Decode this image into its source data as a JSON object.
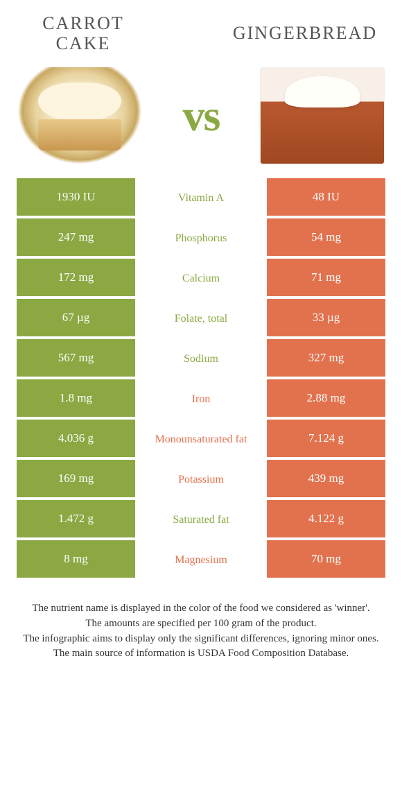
{
  "left": {
    "title": "Carrot cake",
    "color": "#8ba843"
  },
  "right": {
    "title": "Gingerbread",
    "color": "#e2724e"
  },
  "vs_label": "vs",
  "rows": [
    {
      "nutrient": "Vitamin A",
      "left": "1930 IU",
      "right": "48 IU",
      "winner": "left"
    },
    {
      "nutrient": "Phosphorus",
      "left": "247 mg",
      "right": "54 mg",
      "winner": "left"
    },
    {
      "nutrient": "Calcium",
      "left": "172 mg",
      "right": "71 mg",
      "winner": "left"
    },
    {
      "nutrient": "Folate, total",
      "left": "67 µg",
      "right": "33 µg",
      "winner": "left"
    },
    {
      "nutrient": "Sodium",
      "left": "567 mg",
      "right": "327 mg",
      "winner": "left"
    },
    {
      "nutrient": "Iron",
      "left": "1.8 mg",
      "right": "2.88 mg",
      "winner": "right"
    },
    {
      "nutrient": "Monounsaturated fat",
      "left": "4.036 g",
      "right": "7.124 g",
      "winner": "right"
    },
    {
      "nutrient": "Potassium",
      "left": "169 mg",
      "right": "439 mg",
      "winner": "right"
    },
    {
      "nutrient": "Saturated fat",
      "left": "1.472 g",
      "right": "4.122 g",
      "winner": "left"
    },
    {
      "nutrient": "Magnesium",
      "left": "8 mg",
      "right": "70 mg",
      "winner": "right"
    }
  ],
  "footer_lines": [
    "The nutrient name is displayed in the color of the food we considered as 'winner'.",
    "The amounts are specified per 100 gram of the product.",
    "The infographic aims to display only the significant differences, ignoring minor ones.",
    "The main source of information is USDA Food Composition Database."
  ]
}
